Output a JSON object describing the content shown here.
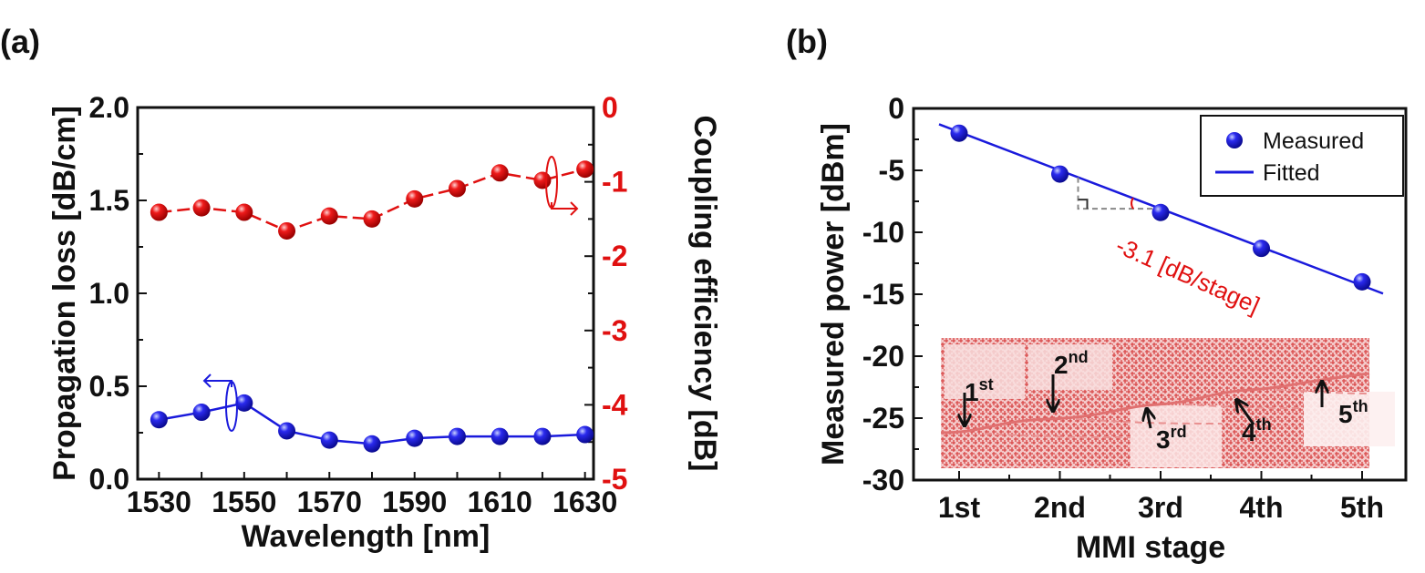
{
  "colors": {
    "blue": "#1a1adc",
    "red": "#e01010",
    "axis": "#111111",
    "inset_bg": "#f6d6d6",
    "inset_pattern": "#d84848"
  },
  "chart_data": [
    {
      "panel_label": "(a)",
      "type": "line",
      "x": [
        1530,
        1540,
        1550,
        1560,
        1570,
        1580,
        1590,
        1600,
        1610,
        1620,
        1630
      ],
      "xlabel": "Wavelength [nm]",
      "xticks": [
        "1530",
        "1550",
        "1570",
        "1590",
        "1610",
        "1630"
      ],
      "xlim": [
        1525,
        1632
      ],
      "grid": false,
      "series": [
        {
          "axis": "left",
          "color": "#1a1adc",
          "marker": "sphere",
          "line": "solid",
          "values": [
            0.32,
            0.36,
            0.41,
            0.26,
            0.21,
            0.19,
            0.22,
            0.23,
            0.23,
            0.23,
            0.24
          ]
        },
        {
          "axis": "right",
          "color": "#e01010",
          "marker": "sphere",
          "line": "dashed",
          "values": [
            -1.41,
            -1.35,
            -1.41,
            -1.66,
            -1.46,
            -1.5,
            -1.23,
            -1.09,
            -0.88,
            -0.98,
            -0.83
          ]
        }
      ],
      "left_axis": {
        "label": "Propagation loss [dB/cm]",
        "ylim": [
          0,
          2.0
        ],
        "ticks": [
          "0.0",
          "0.5",
          "1.0",
          "1.5",
          "2.0"
        ]
      },
      "right_axis": {
        "label": "Coupling efficiency [dB]",
        "ylim": [
          -5,
          0
        ],
        "ticks": [
          "-5",
          "-4",
          "-3",
          "-2",
          "-1",
          "0"
        ],
        "color": "#e01010"
      }
    },
    {
      "panel_label": "(b)",
      "type": "scatter",
      "categories": [
        "1st",
        "2nd",
        "3rd",
        "4th",
        "5th"
      ],
      "xlabel": "MMI stage",
      "ylabel": "Measured power [dBm]",
      "ylim": [
        -30,
        0
      ],
      "yticks": [
        "0",
        "-5",
        "-10",
        "-15",
        "-20",
        "-25",
        "-30"
      ],
      "grid": false,
      "legend_position": "top-right",
      "series": [
        {
          "name": "Measured",
          "type": "scatter",
          "color": "#1a1adc",
          "values": [
            -2.0,
            -5.3,
            -8.4,
            -11.3,
            -14.0
          ]
        },
        {
          "name": "Fitted",
          "type": "line",
          "color": "#1a1adc",
          "slope": -3.1,
          "values": [
            -1.9,
            -5.0,
            -8.1,
            -11.2,
            -14.3
          ]
        }
      ],
      "annotation": "-3.1 [dB/stage]",
      "inset_labels": [
        {
          "base": "1",
          "sup": "st"
        },
        {
          "base": "2",
          "sup": "nd"
        },
        {
          "base": "3",
          "sup": "rd"
        },
        {
          "base": "4",
          "sup": "th"
        },
        {
          "base": "5",
          "sup": "th"
        }
      ]
    }
  ]
}
